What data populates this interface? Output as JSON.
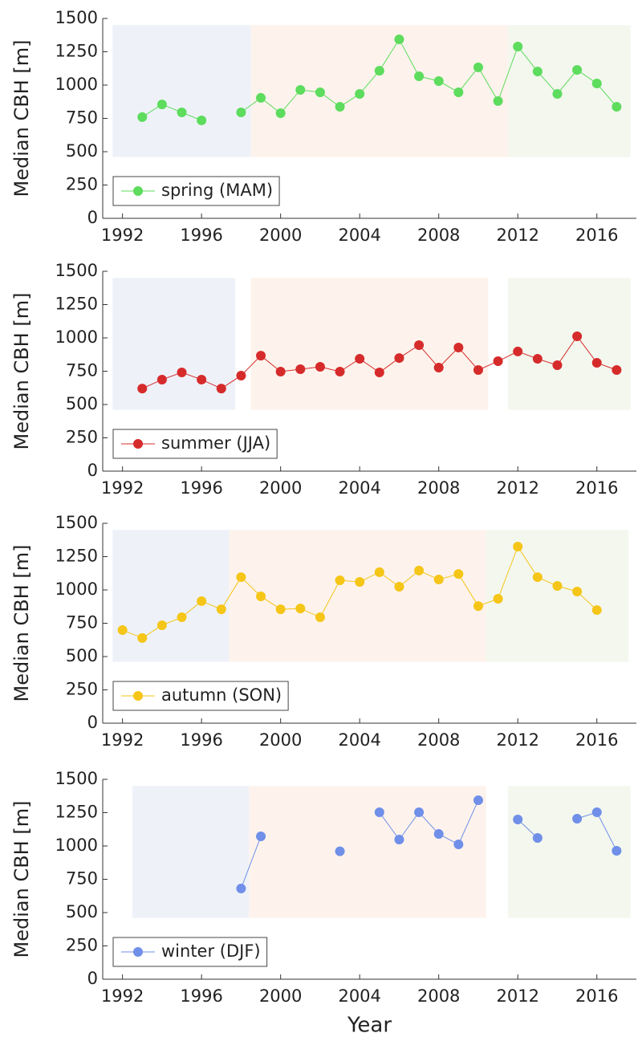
{
  "chart_data": [
    {
      "type": "line",
      "ylabel": "Median CBH [m]",
      "x": [
        1993,
        1994,
        1995,
        1996,
        1997,
        1998,
        1999,
        2000,
        2001,
        2002,
        2003,
        2004,
        2005,
        2006,
        2007,
        2008,
        2009,
        2010,
        2011,
        2012,
        2013,
        2014,
        2015,
        2016,
        2017
      ],
      "series": [
        {
          "name": "spring (MAM)",
          "color": "#5ddc5d",
          "values": [
            760,
            855,
            795,
            735,
            null,
            795,
            904,
            789,
            964,
            946,
            837,
            934,
            1108,
            1343,
            1066,
            1030,
            946,
            1133,
            880,
            1289,
            1102,
            934,
            1114,
            1012,
            837
          ]
        }
      ],
      "bands": [
        {
          "xlim": [
            1991.5,
            1998.5
          ],
          "ylim": [
            460,
            1450
          ],
          "color": "#eef2f8"
        },
        {
          "xlim": [
            1998.5,
            2011.5
          ],
          "ylim": [
            460,
            1450
          ],
          "color": "#fdf3ec"
        },
        {
          "xlim": [
            2011.5,
            2017.7
          ],
          "ylim": [
            460,
            1450
          ],
          "color": "#f3f7ee"
        }
      ],
      "xlim": [
        1991,
        2018
      ],
      "ylim": [
        0,
        1500
      ],
      "xticks": [
        1992,
        1996,
        2000,
        2004,
        2008,
        2012,
        2016
      ],
      "yticks": [
        0,
        250,
        500,
        750,
        1000,
        1250,
        1500
      ],
      "legend": "lower left"
    },
    {
      "type": "line",
      "ylabel": "Median CBH [m]",
      "x": [
        1993,
        1994,
        1995,
        1996,
        1997,
        1998,
        1999,
        2000,
        2001,
        2002,
        2003,
        2004,
        2005,
        2006,
        2007,
        2008,
        2009,
        2010,
        2011,
        2012,
        2013,
        2014,
        2015,
        2016,
        2017
      ],
      "series": [
        {
          "name": "summer (JJA)",
          "color": "#d62b2b",
          "values": [
            620,
            687,
            741,
            687,
            620,
            717,
            867,
            747,
            765,
            783,
            747,
            843,
            741,
            849,
            946,
            777,
            928,
            759,
            825,
            898,
            843,
            795,
            1012,
            813,
            759
          ]
        }
      ],
      "bands": [
        {
          "xlim": [
            1991.5,
            1997.7
          ],
          "ylim": [
            460,
            1450
          ],
          "color": "#eef2f8"
        },
        {
          "xlim": [
            1998.5,
            2010.5
          ],
          "ylim": [
            460,
            1450
          ],
          "color": "#fdf3ec"
        },
        {
          "xlim": [
            2011.5,
            2017.7
          ],
          "ylim": [
            460,
            1450
          ],
          "color": "#f3f7ee"
        }
      ],
      "xlim": [
        1991,
        2018
      ],
      "ylim": [
        0,
        1500
      ],
      "xticks": [
        1992,
        1996,
        2000,
        2004,
        2008,
        2012,
        2016
      ],
      "yticks": [
        0,
        250,
        500,
        750,
        1000,
        1250,
        1500
      ],
      "legend": "lower left"
    },
    {
      "type": "line",
      "ylabel": "Median CBH [m]",
      "x": [
        1992,
        1993,
        1994,
        1995,
        1996,
        1997,
        1998,
        1999,
        2000,
        2001,
        2002,
        2003,
        2004,
        2005,
        2006,
        2007,
        2008,
        2009,
        2010,
        2011,
        2012,
        2013,
        2014,
        2015,
        2016
      ],
      "series": [
        {
          "name": "autumn (SON)",
          "color": "#f5c518",
          "values": [
            699,
            639,
            735,
            795,
            916,
            855,
            1096,
            952,
            855,
            861,
            795,
            1072,
            1060,
            1133,
            1024,
            1145,
            1078,
            1120,
            879,
            934,
            1325,
            1096,
            1030,
            988,
            849
          ]
        }
      ],
      "bands": [
        {
          "xlim": [
            1991.5,
            1997.4
          ],
          "ylim": [
            460,
            1450
          ],
          "color": "#eef2f8"
        },
        {
          "xlim": [
            1997.4,
            2010.4
          ],
          "ylim": [
            460,
            1450
          ],
          "color": "#fdf3ec"
        },
        {
          "xlim": [
            2010.4,
            2017.6
          ],
          "ylim": [
            460,
            1450
          ],
          "color": "#f3f7ee"
        }
      ],
      "xlim": [
        1991,
        2018
      ],
      "ylim": [
        0,
        1500
      ],
      "xticks": [
        1992,
        1996,
        2000,
        2004,
        2008,
        2012,
        2016
      ],
      "yticks": [
        0,
        250,
        500,
        750,
        1000,
        1250,
        1500
      ],
      "legend": "lower left"
    },
    {
      "type": "line",
      "ylabel": "Median CBH [m]",
      "xlabel": "Year",
      "x": [
        1998,
        1999,
        2000,
        2001,
        2002,
        2003,
        2004,
        2005,
        2006,
        2007,
        2008,
        2009,
        2010,
        2011,
        2012,
        2013,
        2014,
        2015,
        2016,
        2017
      ],
      "series": [
        {
          "name": "winter (DJF)",
          "color": "#6f8fe8",
          "values": [
            681,
            1072,
            null,
            null,
            null,
            960,
            null,
            1253,
            1048,
            1253,
            1090,
            1012,
            1343,
            null,
            1199,
            1060,
            null,
            1205,
            1253,
            964
          ]
        }
      ],
      "bands": [
        {
          "xlim": [
            1992.5,
            1998.4
          ],
          "ylim": [
            460,
            1450
          ],
          "color": "#eef2f8"
        },
        {
          "xlim": [
            1998.4,
            2010.4
          ],
          "ylim": [
            460,
            1450
          ],
          "color": "#fdf3ec"
        },
        {
          "xlim": [
            2011.5,
            2017.7
          ],
          "ylim": [
            460,
            1450
          ],
          "color": "#f3f7ee"
        }
      ],
      "xlim": [
        1991,
        2018
      ],
      "ylim": [
        0,
        1500
      ],
      "xticks": [
        1992,
        1996,
        2000,
        2004,
        2008,
        2012,
        2016
      ],
      "yticks": [
        0,
        250,
        500,
        750,
        1000,
        1250,
        1500
      ],
      "legend": "lower left"
    }
  ]
}
